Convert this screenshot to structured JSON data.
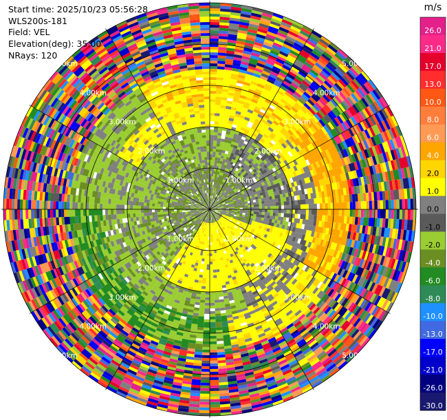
{
  "info": {
    "start_time": "Start time: 2025/10/23 05:56:28",
    "site": "WLS200s-181",
    "field": "Field: VEL",
    "elevation": "Elevation(deg): 35.00",
    "nrays": "NRays: 120"
  },
  "colorbar": {
    "unit": "m/s",
    "ticks": [
      "26.0",
      "21.0",
      "17.0",
      "13.0",
      "10.0",
      "8.0",
      "6.0",
      "4.0",
      "2.0",
      "1.0",
      "0.0",
      "-1.0",
      "-2.0",
      "-4.0",
      "-6.0",
      "-8.0",
      "-10.0",
      "-13.0",
      "-17.0",
      "-21.0",
      "-26.0",
      "-30.0"
    ],
    "colors": [
      "#e4208a",
      "#fd2a88",
      "#e5002b",
      "#ff2d2d",
      "#ff5714",
      "#ff7e3c",
      "#ff9a55",
      "#ffa500",
      "#ffd500",
      "#ffff00",
      "#808080",
      "#5a5a5a",
      "#9acd32",
      "#6b8e23",
      "#228b22",
      "#2e8b57",
      "#1e90ff",
      "#4169e1",
      "#0000ff",
      "#0000cd",
      "#000080",
      "#191970"
    ]
  },
  "chart_data": {
    "type": "heatmap",
    "projection": "polar PPI",
    "field": "VEL",
    "nrays": 120,
    "elevation_deg": 35.0,
    "range_rings": [
      {
        "label": "1.00km"
      },
      {
        "label": "2.00km"
      },
      {
        "label": "3.00km"
      },
      {
        "label": "4.00km"
      },
      {
        "label": "5.00km"
      }
    ],
    "max_range_km": 5.1,
    "radial_lines_deg": [
      0,
      30,
      60,
      90,
      120,
      150,
      180,
      210,
      240,
      270,
      300,
      330
    ],
    "velocity_pattern": {
      "near_center": "grey to yellow-green (-2 to 0 m/s)",
      "south_east_lobe": "yellow (2 to 4 m/s)",
      "north_arc_2_3km": "yellow to orange (2 to 6 m/s)",
      "west_south_arc_2_3km": "green (-6 to -2 m/s)",
      "outer_beyond_3.3km": "noisy, full color range"
    }
  }
}
